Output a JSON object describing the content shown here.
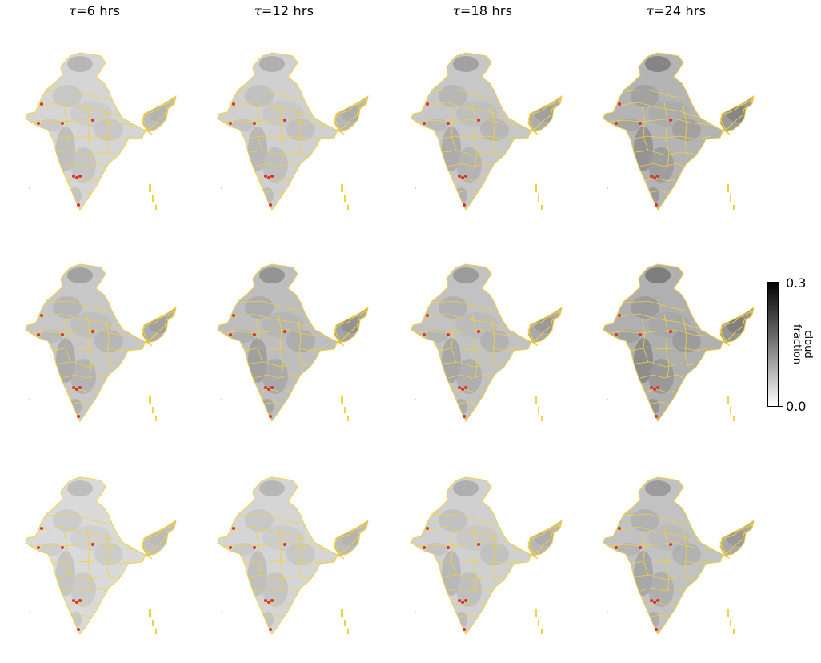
{
  "chart_data": {
    "type": "heatmap",
    "title": "",
    "column_titles": [
      {
        "symbol": "τ",
        "label": "=6 hrs"
      },
      {
        "symbol": "τ",
        "label": "=12 hrs"
      },
      {
        "symbol": "τ",
        "label": "=18 hrs"
      },
      {
        "symbol": "τ",
        "label": "=24 hrs"
      }
    ],
    "rows": 3,
    "columns": 4,
    "map_region": "India",
    "colorbar": {
      "label_line1": "cloud",
      "label_line2": "fraction",
      "min_label": "0.0",
      "max_label": "0.3",
      "vmin": 0.0,
      "vmax": 0.3,
      "colormap": "Greys"
    },
    "mean_cloud_fraction": [
      [
        0.09,
        0.1,
        0.12,
        0.16
      ],
      [
        0.12,
        0.14,
        0.13,
        0.17
      ],
      [
        0.08,
        0.09,
        0.1,
        0.13
      ]
    ],
    "marker_count": 8
  },
  "colors": {
    "border": "#f2d23a",
    "marker": "#d9342b",
    "cmap_high": "#000000",
    "cmap_low": "#ffffff"
  }
}
